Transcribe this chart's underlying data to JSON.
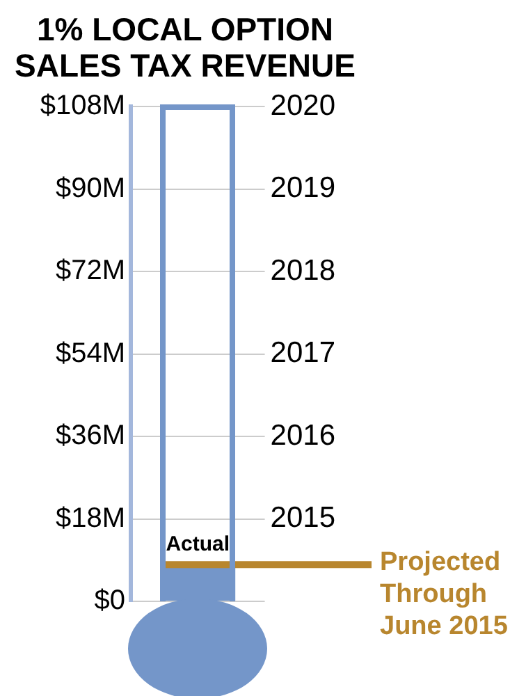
{
  "chart_data": {
    "type": "bar",
    "title": "1% LOCAL OPTION SALES TAX REVENUE",
    "categories": [
      null
    ],
    "values": [
      8
    ],
    "color": "#7496c9",
    "ylim": [
      0,
      108
    ],
    "yticks": [
      {
        "value": 0,
        "label": "$0"
      },
      {
        "value": 18,
        "label": "$18M"
      },
      {
        "value": 36,
        "label": "$36M"
      },
      {
        "value": 54,
        "label": "$54M"
      },
      {
        "value": 72,
        "label": "$72M"
      },
      {
        "value": 90,
        "label": "$90M"
      },
      {
        "value": 108,
        "label": "$108M"
      }
    ],
    "y2lim": [
      2014,
      2020
    ],
    "y2ticks": [
      2015,
      2016,
      2017,
      2018,
      2019,
      2020
    ],
    "grid": "y",
    "legend": false,
    "ref_lines": [
      {
        "axis": "y",
        "value": 8,
        "label": "Projected Through June 2015",
        "color": "#b8862e"
      }
    ],
    "annotations": [
      {
        "text": "Actual",
        "y": 8
      }
    ]
  }
}
